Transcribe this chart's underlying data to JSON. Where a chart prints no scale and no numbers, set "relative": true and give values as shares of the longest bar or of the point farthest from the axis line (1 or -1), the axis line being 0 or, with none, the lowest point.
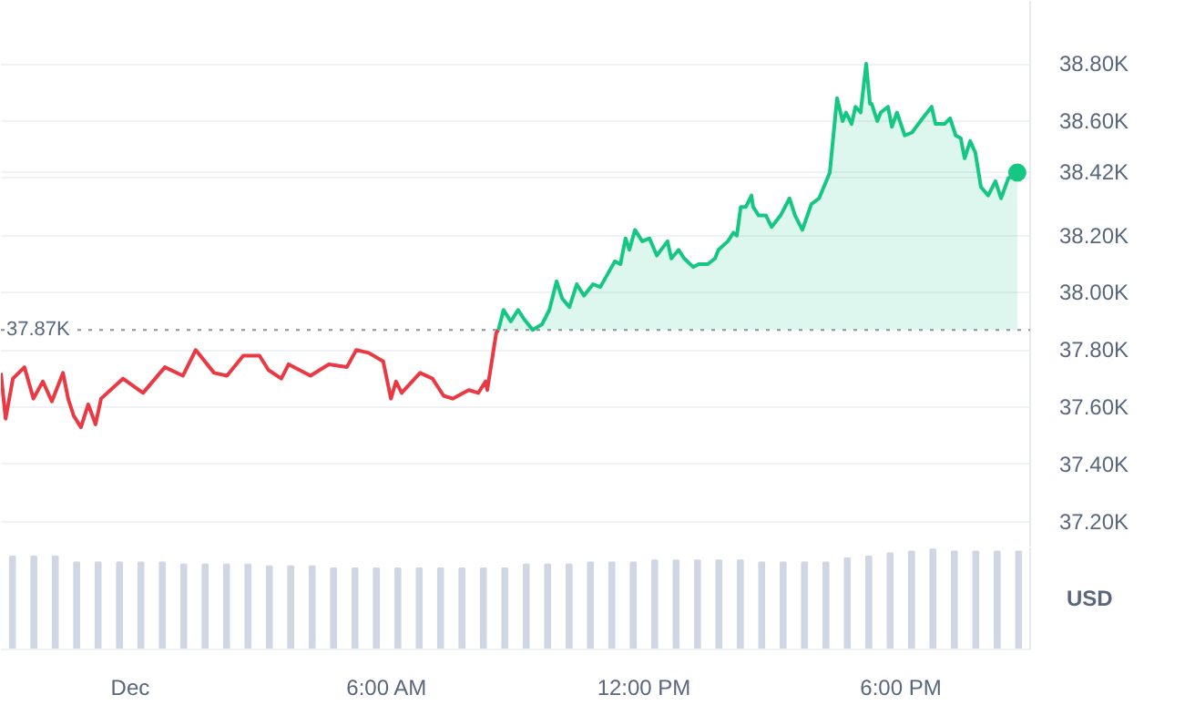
{
  "chart_data": [
    {
      "type": "area",
      "xlim": [
        -3.02,
        21.02
      ],
      "ylim": [
        37.11,
        39.02
      ],
      "tick_labels": "y",
      "yticks": [
        {
          "value": 37.2,
          "label": "37.20K"
        },
        {
          "value": 37.4,
          "label": "37.40K"
        },
        {
          "value": 37.6,
          "label": "37.60K"
        },
        {
          "value": 37.8,
          "label": "37.80K"
        },
        {
          "value": 38.0,
          "label": "38.00K"
        },
        {
          "value": 38.2,
          "label": "38.20K"
        },
        {
          "value": 38.4,
          "label": null
        },
        {
          "value": 38.42,
          "label": "38.42K"
        },
        {
          "value": 38.6,
          "label": "38.60K"
        },
        {
          "value": 38.8,
          "label": "38.80K"
        }
      ],
      "grid": "y",
      "ref_lines": [
        {
          "axis": "y",
          "value": 37.87,
          "label": "37.87K",
          "line_style": "dotted",
          "color": "#8a919e"
        }
      ],
      "ylabel": "USD",
      "series": [
        {
          "type": "line",
          "color": "#ea3943",
          "x": [
            -3.02,
            -2.91,
            -2.74,
            -2.47,
            -2.26,
            -2.04,
            -1.83,
            -1.57,
            -1.45,
            -1.32,
            -1.15,
            -0.98,
            -0.81,
            -0.68,
            -0.17,
            0.3,
            0.81,
            1.23,
            1.53,
            1.96,
            2.26,
            2.64,
            3.02,
            3.23,
            3.53,
            3.7,
            4.21,
            4.64,
            5.06,
            5.28,
            5.57,
            5.91,
            6.09,
            6.21,
            6.34,
            6.77,
            7.06,
            7.32,
            7.53,
            7.91,
            8.13,
            8.3,
            8.34,
            8.55,
            8.6
          ],
          "values": [
            37.72,
            37.56,
            37.7,
            37.74,
            37.63,
            37.69,
            37.62,
            37.72,
            37.63,
            37.57,
            37.53,
            37.61,
            37.54,
            37.63,
            37.7,
            37.65,
            37.74,
            37.71,
            37.8,
            37.72,
            37.71,
            37.78,
            37.78,
            37.73,
            37.7,
            37.75,
            37.71,
            37.75,
            37.74,
            37.8,
            37.79,
            37.76,
            37.63,
            37.69,
            37.65,
            37.72,
            37.7,
            37.64,
            37.63,
            37.66,
            37.65,
            37.69,
            37.66,
            37.86,
            37.87
          ]
        },
        {
          "color": "#16c784",
          "x": [
            8.6,
            8.72,
            8.89,
            9.06,
            9.19,
            9.4,
            9.62,
            9.79,
            9.96,
            10.09,
            10.26,
            10.43,
            10.6,
            10.81,
            10.98,
            11.32,
            11.45,
            11.57,
            11.66,
            11.79,
            11.96,
            12.13,
            12.3,
            12.55,
            12.64,
            12.81,
            12.94,
            13.15,
            13.28,
            13.49,
            13.66,
            13.74,
            13.96,
            14.09,
            14.17,
            14.26,
            14.38,
            14.51,
            14.55,
            14.68,
            14.85,
            14.98,
            15.19,
            15.4,
            15.53,
            15.7,
            15.91,
            16.09,
            16.34,
            16.51,
            16.64,
            16.72,
            16.85,
            16.94,
            17.06,
            17.19,
            17.28,
            17.32,
            17.45,
            17.53,
            17.7,
            17.79,
            17.91,
            18.09,
            18.26,
            18.51,
            18.72,
            18.81,
            19.02,
            19.15,
            19.28,
            19.4,
            19.49,
            19.62,
            19.74,
            19.87,
            20.04,
            20.21,
            20.34,
            20.51,
            20.72
          ],
          "values": [
            37.87,
            37.94,
            37.9,
            37.94,
            37.91,
            37.87,
            37.89,
            37.94,
            38.04,
            37.98,
            37.95,
            38.03,
            37.99,
            38.03,
            38.02,
            38.11,
            38.1,
            38.19,
            38.15,
            38.22,
            38.18,
            38.19,
            38.13,
            38.18,
            38.12,
            38.15,
            38.12,
            38.09,
            38.1,
            38.1,
            38.12,
            38.15,
            38.18,
            38.21,
            38.2,
            38.3,
            38.3,
            38.34,
            38.3,
            38.27,
            38.27,
            38.23,
            38.27,
            38.33,
            38.27,
            38.22,
            38.31,
            38.33,
            38.42,
            38.68,
            38.6,
            38.63,
            38.59,
            38.65,
            38.63,
            38.8,
            38.66,
            38.66,
            38.6,
            38.63,
            38.65,
            38.58,
            38.63,
            38.55,
            38.56,
            38.61,
            38.65,
            38.59,
            38.59,
            38.61,
            38.55,
            38.54,
            38.47,
            38.53,
            38.49,
            38.37,
            38.34,
            38.39,
            38.33,
            38.4,
            38.42
          ]
        },
        {
          "type": "scatter",
          "marker": "circle",
          "color": "#16c784",
          "x": [
            20.72
          ],
          "values": [
            38.42
          ]
        }
      ]
    },
    {
      "type": "bar",
      "relative": true,
      "color": "#cfd6e4",
      "xlim": [
        -3.02,
        21.02
      ],
      "xticks": [
        {
          "value": 0,
          "label": "Dec"
        },
        {
          "value": 6,
          "label": "6:00 AM"
        },
        {
          "value": 12,
          "label": "12:00 PM"
        },
        {
          "value": 18,
          "label": "6:00 PM"
        }
      ],
      "x": [
        -2.75,
        -2.25,
        -1.75,
        -1.25,
        -0.75,
        -0.25,
        0.25,
        0.75,
        1.25,
        1.75,
        2.25,
        2.75,
        3.25,
        3.75,
        4.25,
        4.75,
        5.25,
        5.75,
        6.25,
        6.75,
        7.25,
        7.75,
        8.25,
        8.75,
        9.25,
        9.75,
        10.25,
        10.75,
        11.25,
        11.75,
        12.25,
        12.75,
        13.25,
        13.75,
        14.25,
        14.75,
        15.25,
        15.75,
        16.25,
        16.75,
        17.25,
        17.75,
        18.25,
        18.75,
        19.25,
        19.75,
        20.25,
        20.75
      ],
      "values": [
        0.93,
        0.93,
        0.93,
        0.87,
        0.87,
        0.87,
        0.87,
        0.87,
        0.85,
        0.85,
        0.85,
        0.85,
        0.83,
        0.83,
        0.83,
        0.81,
        0.81,
        0.81,
        0.81,
        0.81,
        0.81,
        0.81,
        0.81,
        0.81,
        0.85,
        0.85,
        0.85,
        0.87,
        0.87,
        0.87,
        0.89,
        0.89,
        0.89,
        0.89,
        0.89,
        0.87,
        0.87,
        0.87,
        0.87,
        0.91,
        0.93,
        0.96,
        0.98,
        1,
        0.98,
        0.98,
        0.98,
        0.98
      ]
    }
  ]
}
